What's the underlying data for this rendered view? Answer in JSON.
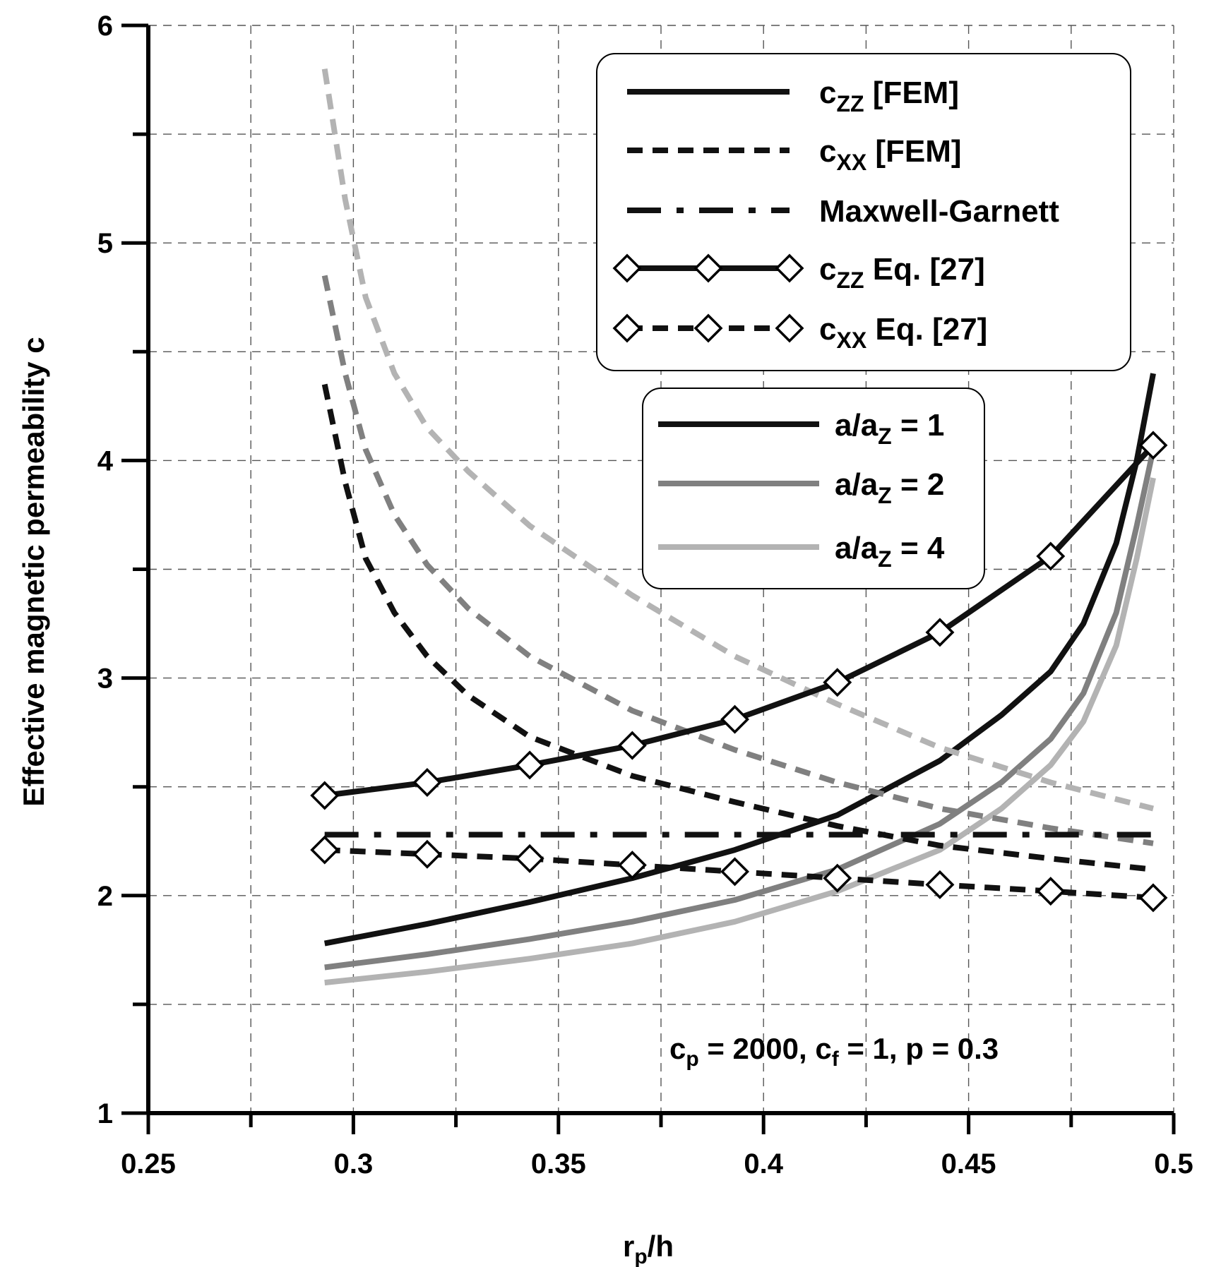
{
  "chart_data": {
    "type": "line",
    "xlabel": {
      "main": "r",
      "sub": "p",
      "rest": "/h"
    },
    "ylabel": "Effective magnetic permeability c",
    "xlim": [
      0.25,
      0.5
    ],
    "ylim": [
      1,
      6
    ],
    "xticks": [
      "0.25",
      "0.3",
      "0.35",
      "0.4",
      "0.45",
      "0.5"
    ],
    "yticks": [
      "1",
      "2",
      "3",
      "4",
      "5",
      "6"
    ],
    "grid": true,
    "annotation": {
      "parts": [
        {
          "text": "c",
          "sub": "p",
          "rest": " = 2000, "
        },
        {
          "text": "c",
          "sub": "f",
          "rest": " = 1, p = 0.3"
        }
      ]
    },
    "legend_styles": {
      "position": "top-right",
      "entries": [
        {
          "pre": "c",
          "sub": "ZZ",
          "post": " [FEM]",
          "style": "solid"
        },
        {
          "pre": "c",
          "sub": "XX",
          "post": " [FEM]",
          "style": "dashed"
        },
        {
          "pre": "Maxwell-Garnett",
          "sub": "",
          "post": "",
          "style": "dashdot"
        },
        {
          "pre": "c",
          "sub": "ZZ",
          "post": " Eq. [27]",
          "style": "solid-diamond"
        },
        {
          "pre": "c",
          "sub": "XX",
          "post": " Eq. [27]",
          "style": "dashed-diamond"
        }
      ]
    },
    "legend_ratios": {
      "position": "upper-middle",
      "entries": [
        {
          "pre": "a/a",
          "sub": "Z",
          "post": " = 1",
          "color": "#111111"
        },
        {
          "pre": "a/a",
          "sub": "Z",
          "post": " = 2",
          "color": "#808080"
        },
        {
          "pre": "a/a",
          "sub": "Z",
          "post": " = 4",
          "color": "#b3b3b3"
        }
      ]
    },
    "series": [
      {
        "name": "c_zz FEM a/az=1",
        "style": "solid",
        "color": "#111111",
        "x": [
          0.293,
          0.318,
          0.343,
          0.368,
          0.393,
          0.418,
          0.443,
          0.458,
          0.47,
          0.478,
          0.486,
          0.491,
          0.495
        ],
        "y": [
          1.78,
          1.87,
          1.97,
          2.08,
          2.21,
          2.37,
          2.62,
          2.83,
          3.03,
          3.25,
          3.62,
          4.0,
          4.4
        ]
      },
      {
        "name": "c_zz FEM a/az=2",
        "style": "solid",
        "color": "#808080",
        "x": [
          0.293,
          0.318,
          0.343,
          0.368,
          0.393,
          0.418,
          0.443,
          0.458,
          0.47,
          0.478,
          0.486,
          0.491,
          0.495
        ],
        "y": [
          1.67,
          1.73,
          1.8,
          1.88,
          1.98,
          2.12,
          2.33,
          2.52,
          2.72,
          2.93,
          3.3,
          3.7,
          4.05
        ]
      },
      {
        "name": "c_zz FEM a/az=4",
        "style": "solid",
        "color": "#b3b3b3",
        "x": [
          0.293,
          0.318,
          0.343,
          0.368,
          0.393,
          0.418,
          0.443,
          0.458,
          0.47,
          0.478,
          0.486,
          0.491,
          0.495
        ],
        "y": [
          1.6,
          1.65,
          1.71,
          1.78,
          1.88,
          2.02,
          2.21,
          2.4,
          2.6,
          2.8,
          3.15,
          3.55,
          3.92
        ]
      },
      {
        "name": "c_xx FEM a/az=1",
        "style": "dashed",
        "color": "#111111",
        "x": [
          0.293,
          0.298,
          0.303,
          0.31,
          0.318,
          0.328,
          0.343,
          0.368,
          0.393,
          0.418,
          0.443,
          0.47,
          0.495
        ],
        "y": [
          4.35,
          3.9,
          3.55,
          3.3,
          3.1,
          2.92,
          2.73,
          2.55,
          2.43,
          2.32,
          2.23,
          2.17,
          2.12
        ]
      },
      {
        "name": "c_xx FEM a/az=2",
        "style": "dashed",
        "color": "#808080",
        "x": [
          0.293,
          0.298,
          0.303,
          0.31,
          0.318,
          0.328,
          0.343,
          0.368,
          0.393,
          0.418,
          0.443,
          0.47,
          0.495
        ],
        "y": [
          4.85,
          4.4,
          4.05,
          3.75,
          3.52,
          3.32,
          3.1,
          2.85,
          2.67,
          2.52,
          2.4,
          2.31,
          2.24
        ]
      },
      {
        "name": "c_xx FEM a/az=4",
        "style": "dashed",
        "color": "#b3b3b3",
        "x": [
          0.293,
          0.298,
          0.303,
          0.31,
          0.318,
          0.328,
          0.343,
          0.368,
          0.393,
          0.418,
          0.443,
          0.47,
          0.495
        ],
        "y": [
          5.8,
          5.2,
          4.75,
          4.4,
          4.15,
          3.95,
          3.7,
          3.38,
          3.1,
          2.88,
          2.68,
          2.52,
          2.4
        ]
      },
      {
        "name": "Maxwell-Garnett",
        "style": "dashdot",
        "color": "#111111",
        "x": [
          0.293,
          0.495
        ],
        "y": [
          2.28,
          2.28
        ]
      },
      {
        "name": "c_zz Eq. [27]",
        "style": "solid",
        "color": "#111111",
        "markers": "diamond",
        "x": [
          0.293,
          0.318,
          0.343,
          0.368,
          0.393,
          0.418,
          0.443,
          0.47,
          0.495
        ],
        "y": [
          2.46,
          2.52,
          2.6,
          2.69,
          2.81,
          2.98,
          3.21,
          3.56,
          4.07
        ]
      },
      {
        "name": "c_xx Eq. [27]",
        "style": "dashed",
        "color": "#111111",
        "markers": "diamond",
        "x": [
          0.293,
          0.318,
          0.343,
          0.368,
          0.393,
          0.418,
          0.443,
          0.47,
          0.495
        ],
        "y": [
          2.21,
          2.19,
          2.17,
          2.14,
          2.11,
          2.08,
          2.05,
          2.02,
          1.99
        ]
      }
    ]
  }
}
